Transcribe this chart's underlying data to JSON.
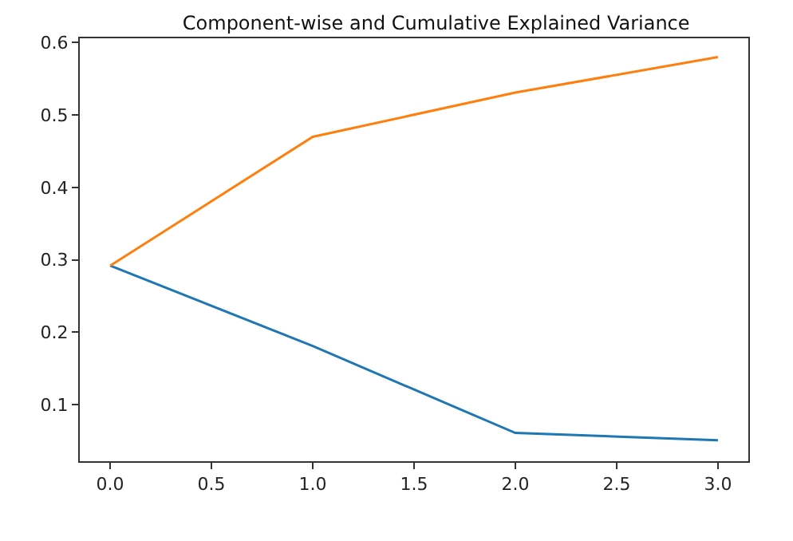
{
  "chart_data": {
    "type": "line",
    "title": "Component-wise and Cumulative Explained Variance",
    "x": [
      0,
      1,
      2,
      3
    ],
    "series": [
      {
        "color": "#1f77b4",
        "values": [
          0.292,
          0.181,
          0.061,
          0.051
        ]
      },
      {
        "color": "#ff7f0e",
        "values": [
          0.292,
          0.47,
          0.531,
          0.58
        ]
      }
    ],
    "xlim": [
      -0.15,
      3.15
    ],
    "xticks": [
      {
        "value": 0,
        "label": "0.0"
      },
      {
        "value": 0.5,
        "label": "0.5"
      },
      {
        "value": 1,
        "label": "1.0"
      },
      {
        "value": 1.5,
        "label": "1.5"
      },
      {
        "value": 2,
        "label": "2.0"
      },
      {
        "value": 2.5,
        "label": "2.5"
      },
      {
        "value": 3,
        "label": "3.0"
      }
    ],
    "ylim": [
      0.022,
      0.606
    ],
    "yticks": [
      0.1,
      0.2,
      0.3,
      0.4,
      0.5,
      0.6
    ]
  }
}
